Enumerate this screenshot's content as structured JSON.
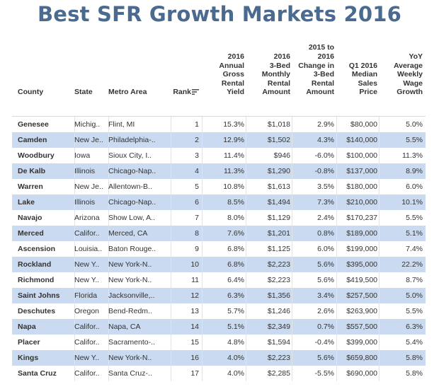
{
  "title": "Best SFR Growth Markets 2016",
  "table": {
    "headers": {
      "county": "County",
      "state": "State",
      "metro": "Metro Area",
      "rank": "Rank",
      "yield": [
        "2016",
        "Annual",
        "Gross",
        "Rental",
        "Yield"
      ],
      "rent": [
        "2016",
        "3-Bed",
        "Monthly",
        "Rental",
        "Amount"
      ],
      "change": [
        "2015 to",
        "2016",
        "Change in",
        "3-Bed",
        "Rental",
        "Amount"
      ],
      "price": [
        "Q1 2016",
        "Median",
        "Sales",
        "Price"
      ],
      "wage": [
        "YoY",
        "Average",
        "Weekly",
        "Wage",
        "Growth"
      ]
    },
    "sort_icon": "sort-descending-icon",
    "row_alt_color": "#c9daf1",
    "rows": [
      {
        "county": "Genesee",
        "state": "Michig..",
        "metro": "Flint, MI",
        "rank": "1",
        "yield": "15.3%",
        "rent": "$1,018",
        "change": "2.9%",
        "price": "$80,000",
        "wage": "5.0%"
      },
      {
        "county": "Camden",
        "state": "New Je..",
        "metro": "Philadelphia-..",
        "rank": "2",
        "yield": "12.9%",
        "rent": "$1,502",
        "change": "4.3%",
        "price": "$140,000",
        "wage": "5.5%"
      },
      {
        "county": "Woodbury",
        "state": "Iowa",
        "metro": "Sioux City, I..",
        "rank": "3",
        "yield": "11.4%",
        "rent": "$946",
        "change": "-6.0%",
        "price": "$100,000",
        "wage": "11.3%"
      },
      {
        "county": "De Kalb",
        "state": "Illinois",
        "metro": "Chicago-Nap..",
        "rank": "4",
        "yield": "11.3%",
        "rent": "$1,290",
        "change": "-0.8%",
        "price": "$137,000",
        "wage": "8.9%"
      },
      {
        "county": "Warren",
        "state": "New Je..",
        "metro": "Allentown-B..",
        "rank": "5",
        "yield": "10.8%",
        "rent": "$1,613",
        "change": "3.5%",
        "price": "$180,000",
        "wage": "6.0%"
      },
      {
        "county": "Lake",
        "state": "Illinois",
        "metro": "Chicago-Nap..",
        "rank": "6",
        "yield": "8.5%",
        "rent": "$1,494",
        "change": "7.3%",
        "price": "$210,000",
        "wage": "10.1%"
      },
      {
        "county": "Navajo",
        "state": "Arizona",
        "metro": "Show Low, A..",
        "rank": "7",
        "yield": "8.0%",
        "rent": "$1,129",
        "change": "2.4%",
        "price": "$170,237",
        "wage": "5.5%"
      },
      {
        "county": "Merced",
        "state": "Califor..",
        "metro": "Merced, CA",
        "rank": "8",
        "yield": "7.6%",
        "rent": "$1,201",
        "change": "0.8%",
        "price": "$189,000",
        "wage": "5.1%"
      },
      {
        "county": "Ascension",
        "state": "Louisia..",
        "metro": "Baton Rouge..",
        "rank": "9",
        "yield": "6.8%",
        "rent": "$1,125",
        "change": "6.0%",
        "price": "$199,000",
        "wage": "7.4%"
      },
      {
        "county": "Rockland",
        "state": "New Y..",
        "metro": "New York-N..",
        "rank": "10",
        "yield": "6.8%",
        "rent": "$2,223",
        "change": "5.6%",
        "price": "$395,000",
        "wage": "22.2%"
      },
      {
        "county": "Richmond",
        "state": "New Y..",
        "metro": "New York-N..",
        "rank": "11",
        "yield": "6.4%",
        "rent": "$2,223",
        "change": "5.6%",
        "price": "$419,500",
        "wage": "8.7%"
      },
      {
        "county": "Saint Johns",
        "state": "Florida",
        "metro": "Jacksonville,..",
        "rank": "12",
        "yield": "6.3%",
        "rent": "$1,356",
        "change": "3.4%",
        "price": "$257,500",
        "wage": "5.0%"
      },
      {
        "county": "Deschutes",
        "state": "Oregon",
        "metro": "Bend-Redm..",
        "rank": "13",
        "yield": "5.7%",
        "rent": "$1,246",
        "change": "2.6%",
        "price": "$263,900",
        "wage": "5.5%"
      },
      {
        "county": "Napa",
        "state": "Califor..",
        "metro": "Napa, CA",
        "rank": "14",
        "yield": "5.1%",
        "rent": "$2,349",
        "change": "0.7%",
        "price": "$557,500",
        "wage": "6.3%"
      },
      {
        "county": "Placer",
        "state": "Califor..",
        "metro": "Sacramento-..",
        "rank": "15",
        "yield": "4.8%",
        "rent": "$1,594",
        "change": "-0.4%",
        "price": "$399,000",
        "wage": "5.4%"
      },
      {
        "county": "Kings",
        "state": "New Y..",
        "metro": "New York-N..",
        "rank": "16",
        "yield": "4.0%",
        "rent": "$2,223",
        "change": "5.6%",
        "price": "$659,800",
        "wage": "5.8%"
      },
      {
        "county": "Santa Cruz",
        "state": "Califor..",
        "metro": "Santa Cruz-..",
        "rank": "17",
        "yield": "4.0%",
        "rent": "$2,285",
        "change": "-5.5%",
        "price": "$690,000",
        "wage": "5.8%"
      }
    ]
  }
}
